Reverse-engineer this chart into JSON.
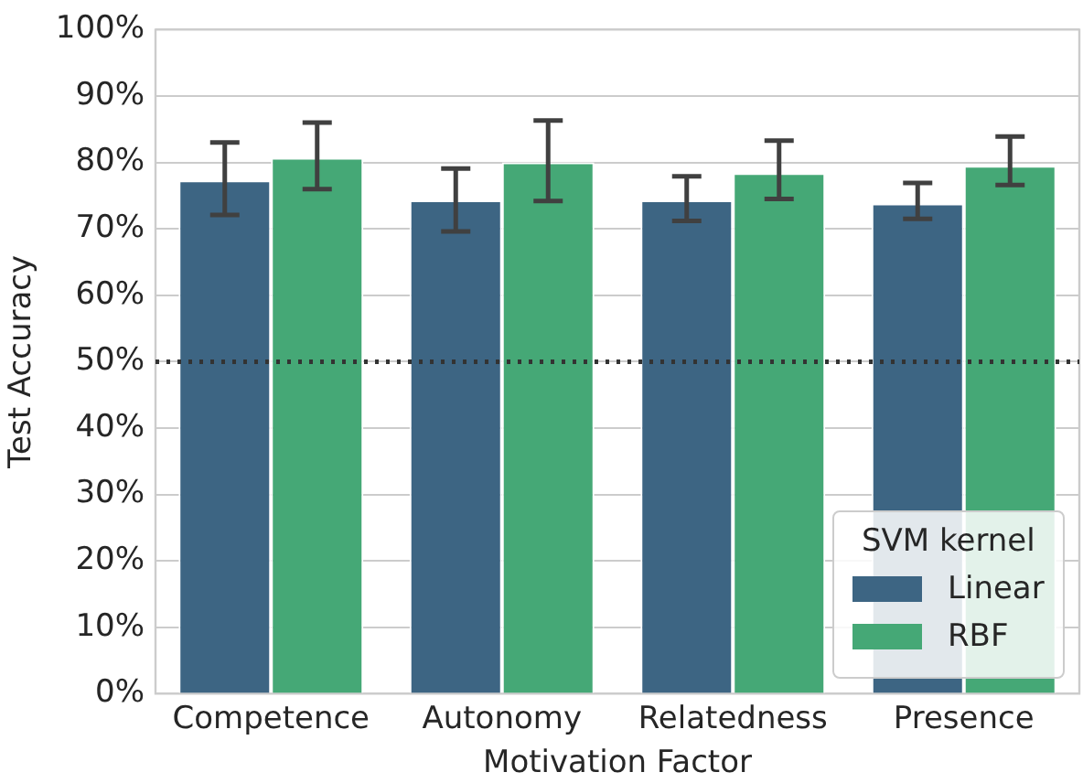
{
  "chart_data": {
    "type": "bar",
    "xlabel": "Motivation Factor",
    "ylabel": "Test Accuracy",
    "legend_title": "SVM kernel",
    "categories": [
      "Competence",
      "Autonomy",
      "Relatedness",
      "Presence"
    ],
    "series": [
      {
        "name": "Linear",
        "color": "#3d6583",
        "values": [
          77.3,
          74.3,
          74.3,
          73.8
        ],
        "errors": [
          [
            72.1,
            83.0
          ],
          [
            69.6,
            79.1
          ],
          [
            71.2,
            77.9
          ],
          [
            71.5,
            76.9
          ]
        ]
      },
      {
        "name": "RBF",
        "color": "#45a876",
        "values": [
          80.7,
          80.0,
          78.4,
          79.5
        ],
        "errors": [
          [
            76.0,
            86.0
          ],
          [
            74.2,
            86.3
          ],
          [
            74.5,
            83.3
          ],
          [
            76.6,
            83.9
          ]
        ]
      }
    ],
    "ylim": [
      0,
      100
    ],
    "yticks": [
      {
        "value": 0,
        "label": "0%"
      },
      {
        "value": 10,
        "label": "10%"
      },
      {
        "value": 20,
        "label": "20%"
      },
      {
        "value": 30,
        "label": "30%"
      },
      {
        "value": 40,
        "label": "40%"
      },
      {
        "value": 50,
        "label": "50%"
      },
      {
        "value": 60,
        "label": "60%"
      },
      {
        "value": 70,
        "label": "70%"
      },
      {
        "value": 80,
        "label": "80%"
      },
      {
        "value": 90,
        "label": "90%"
      },
      {
        "value": 100,
        "label": "100%"
      }
    ],
    "ref_lines": [
      {
        "axis": "y",
        "value": 50,
        "color": "#333333",
        "line_style": "dotted"
      }
    ],
    "grid": "y",
    "legend": "bottom right"
  }
}
